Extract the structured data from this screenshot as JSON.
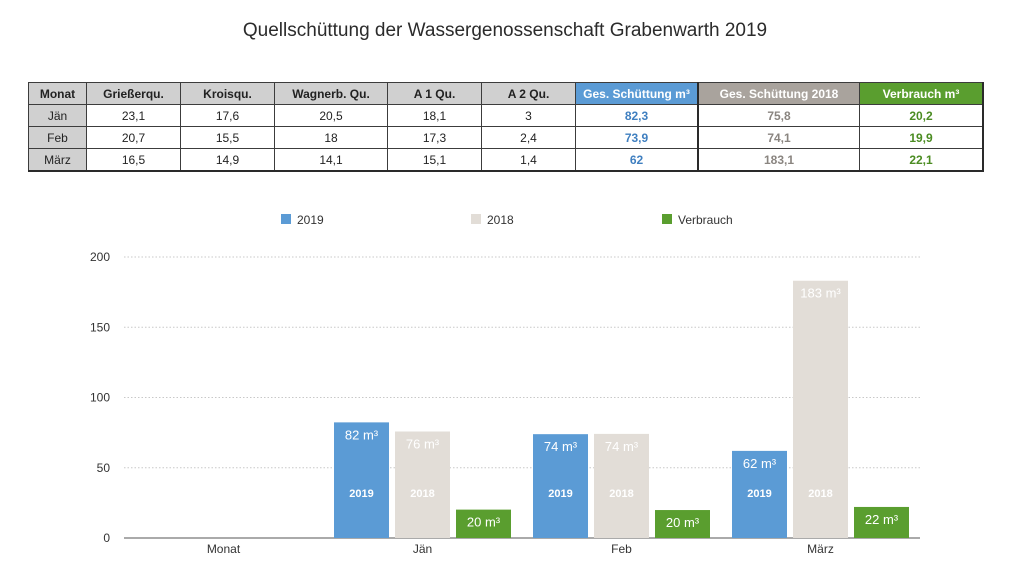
{
  "title": "Quellschüttung der Wassergenossenschaft Grabenwarth 2019",
  "table": {
    "headers": [
      "Monat",
      "Grießerqu.",
      "Kroisqu.",
      "Wagnerb. Qu.",
      "A 1 Qu.",
      "A 2 Qu.",
      "Ges. Schüttung m³",
      "Ges. Schüttung 2018",
      "Verbrauch m³"
    ],
    "rows": [
      [
        "Jän",
        "23,1",
        "17,6",
        "20,5",
        "18,1",
        "3",
        "82,3",
        "75,8",
        "20,2"
      ],
      [
        "Feb",
        "20,7",
        "15,5",
        "18",
        "17,3",
        "2,4",
        "73,9",
        "74,1",
        "19,9"
      ],
      [
        "März",
        "16,5",
        "14,9",
        "14,1",
        "15,1",
        "1,4",
        "62",
        "183,1",
        "22,1"
      ]
    ]
  },
  "colors": {
    "series_2019": "#5b9bd5",
    "series_2018": "#e2ddd7",
    "series_verbrauch": "#5a9e2f",
    "label_on_2018": "#ffffff",
    "gridline": "#c8c8c8"
  },
  "chart_data": {
    "type": "bar",
    "categories": [
      "Monat",
      "Jän",
      "Feb",
      "März"
    ],
    "series": [
      {
        "name": "2019",
        "values": [
          null,
          82.3,
          73.9,
          62
        ],
        "labels": [
          null,
          "82 m³",
          "74 m³",
          "62 m³"
        ],
        "inner_labels": [
          null,
          "2019",
          "2019",
          "2019"
        ]
      },
      {
        "name": "2018",
        "values": [
          null,
          75.8,
          74.1,
          183.1
        ],
        "labels": [
          null,
          "76 m³",
          "74 m³",
          "183 m³"
        ],
        "inner_labels": [
          null,
          "2018",
          "2018",
          "2018"
        ]
      },
      {
        "name": "Verbrauch",
        "values": [
          null,
          20.2,
          19.9,
          22.1
        ],
        "labels": [
          null,
          "20 m³",
          "20 m³",
          "22 m³"
        ],
        "inner_labels": [
          null,
          null,
          null,
          null
        ]
      }
    ],
    "yticks": [
      0,
      50,
      100,
      150,
      200
    ],
    "ylim": [
      0,
      200
    ],
    "grid": true,
    "legend_position": "top"
  }
}
